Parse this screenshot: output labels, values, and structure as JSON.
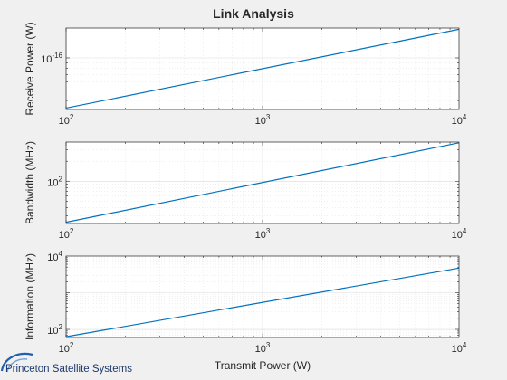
{
  "figure": {
    "title": "Link Analysis",
    "background": "#f0f0f0",
    "axes_background": "#ffffff",
    "line_color": "#0072bd",
    "logo_text": "Princeton Satellite Systems",
    "logo_color": "#1f3a6e"
  },
  "chart_data": [
    {
      "type": "line",
      "title": "Link Analysis",
      "xlabel": "",
      "ylabel": "Receive Power (W)",
      "xscale": "log",
      "yscale": "log",
      "xlim": [
        100,
        10000
      ],
      "ylim": [
        3.3e-17,
        1.9e-16
      ],
      "grid": true,
      "minor_grid": true,
      "x_ticks": [
        {
          "base": "10",
          "exp": "2"
        },
        {
          "base": "10",
          "exp": "3"
        },
        {
          "base": "10",
          "exp": "4"
        }
      ],
      "y_ticks": [
        {
          "value": 1e-16,
          "base": "10",
          "exp": "-16"
        }
      ],
      "series": [
        {
          "x": [
            100,
            10000
          ],
          "y": [
            3.4e-17,
            1.85e-16
          ]
        }
      ]
    },
    {
      "type": "line",
      "xlabel": "",
      "ylabel": "Bandwidth (MHz)",
      "xscale": "log",
      "yscale": "log",
      "xlim": [
        100,
        10000
      ],
      "ylim": [
        23,
        390
      ],
      "grid": true,
      "minor_grid": true,
      "x_ticks": [
        {
          "base": "10",
          "exp": "2"
        },
        {
          "base": "10",
          "exp": "3"
        },
        {
          "base": "10",
          "exp": "4"
        }
      ],
      "y_ticks": [
        {
          "value": 100,
          "base": "10",
          "exp": "2"
        }
      ],
      "series": [
        {
          "x": [
            100,
            10000
          ],
          "y": [
            24,
            380
          ]
        }
      ]
    },
    {
      "type": "line",
      "xlabel": "Transmit Power (W)",
      "ylabel": "Information (MHz)",
      "xscale": "log",
      "yscale": "log",
      "xlim": [
        100,
        10000
      ],
      "ylim": [
        60,
        10000
      ],
      "grid": true,
      "minor_grid": true,
      "x_ticks": [
        {
          "base": "10",
          "exp": "2"
        },
        {
          "base": "10",
          "exp": "3"
        },
        {
          "base": "10",
          "exp": "4"
        }
      ],
      "y_ticks": [
        {
          "value": 100,
          "base": "10",
          "exp": "2"
        },
        {
          "value": 10000,
          "base": "10",
          "exp": "4"
        }
      ],
      "series": [
        {
          "x": [
            100,
            10000
          ],
          "y": [
            63,
            4700
          ]
        }
      ]
    }
  ]
}
